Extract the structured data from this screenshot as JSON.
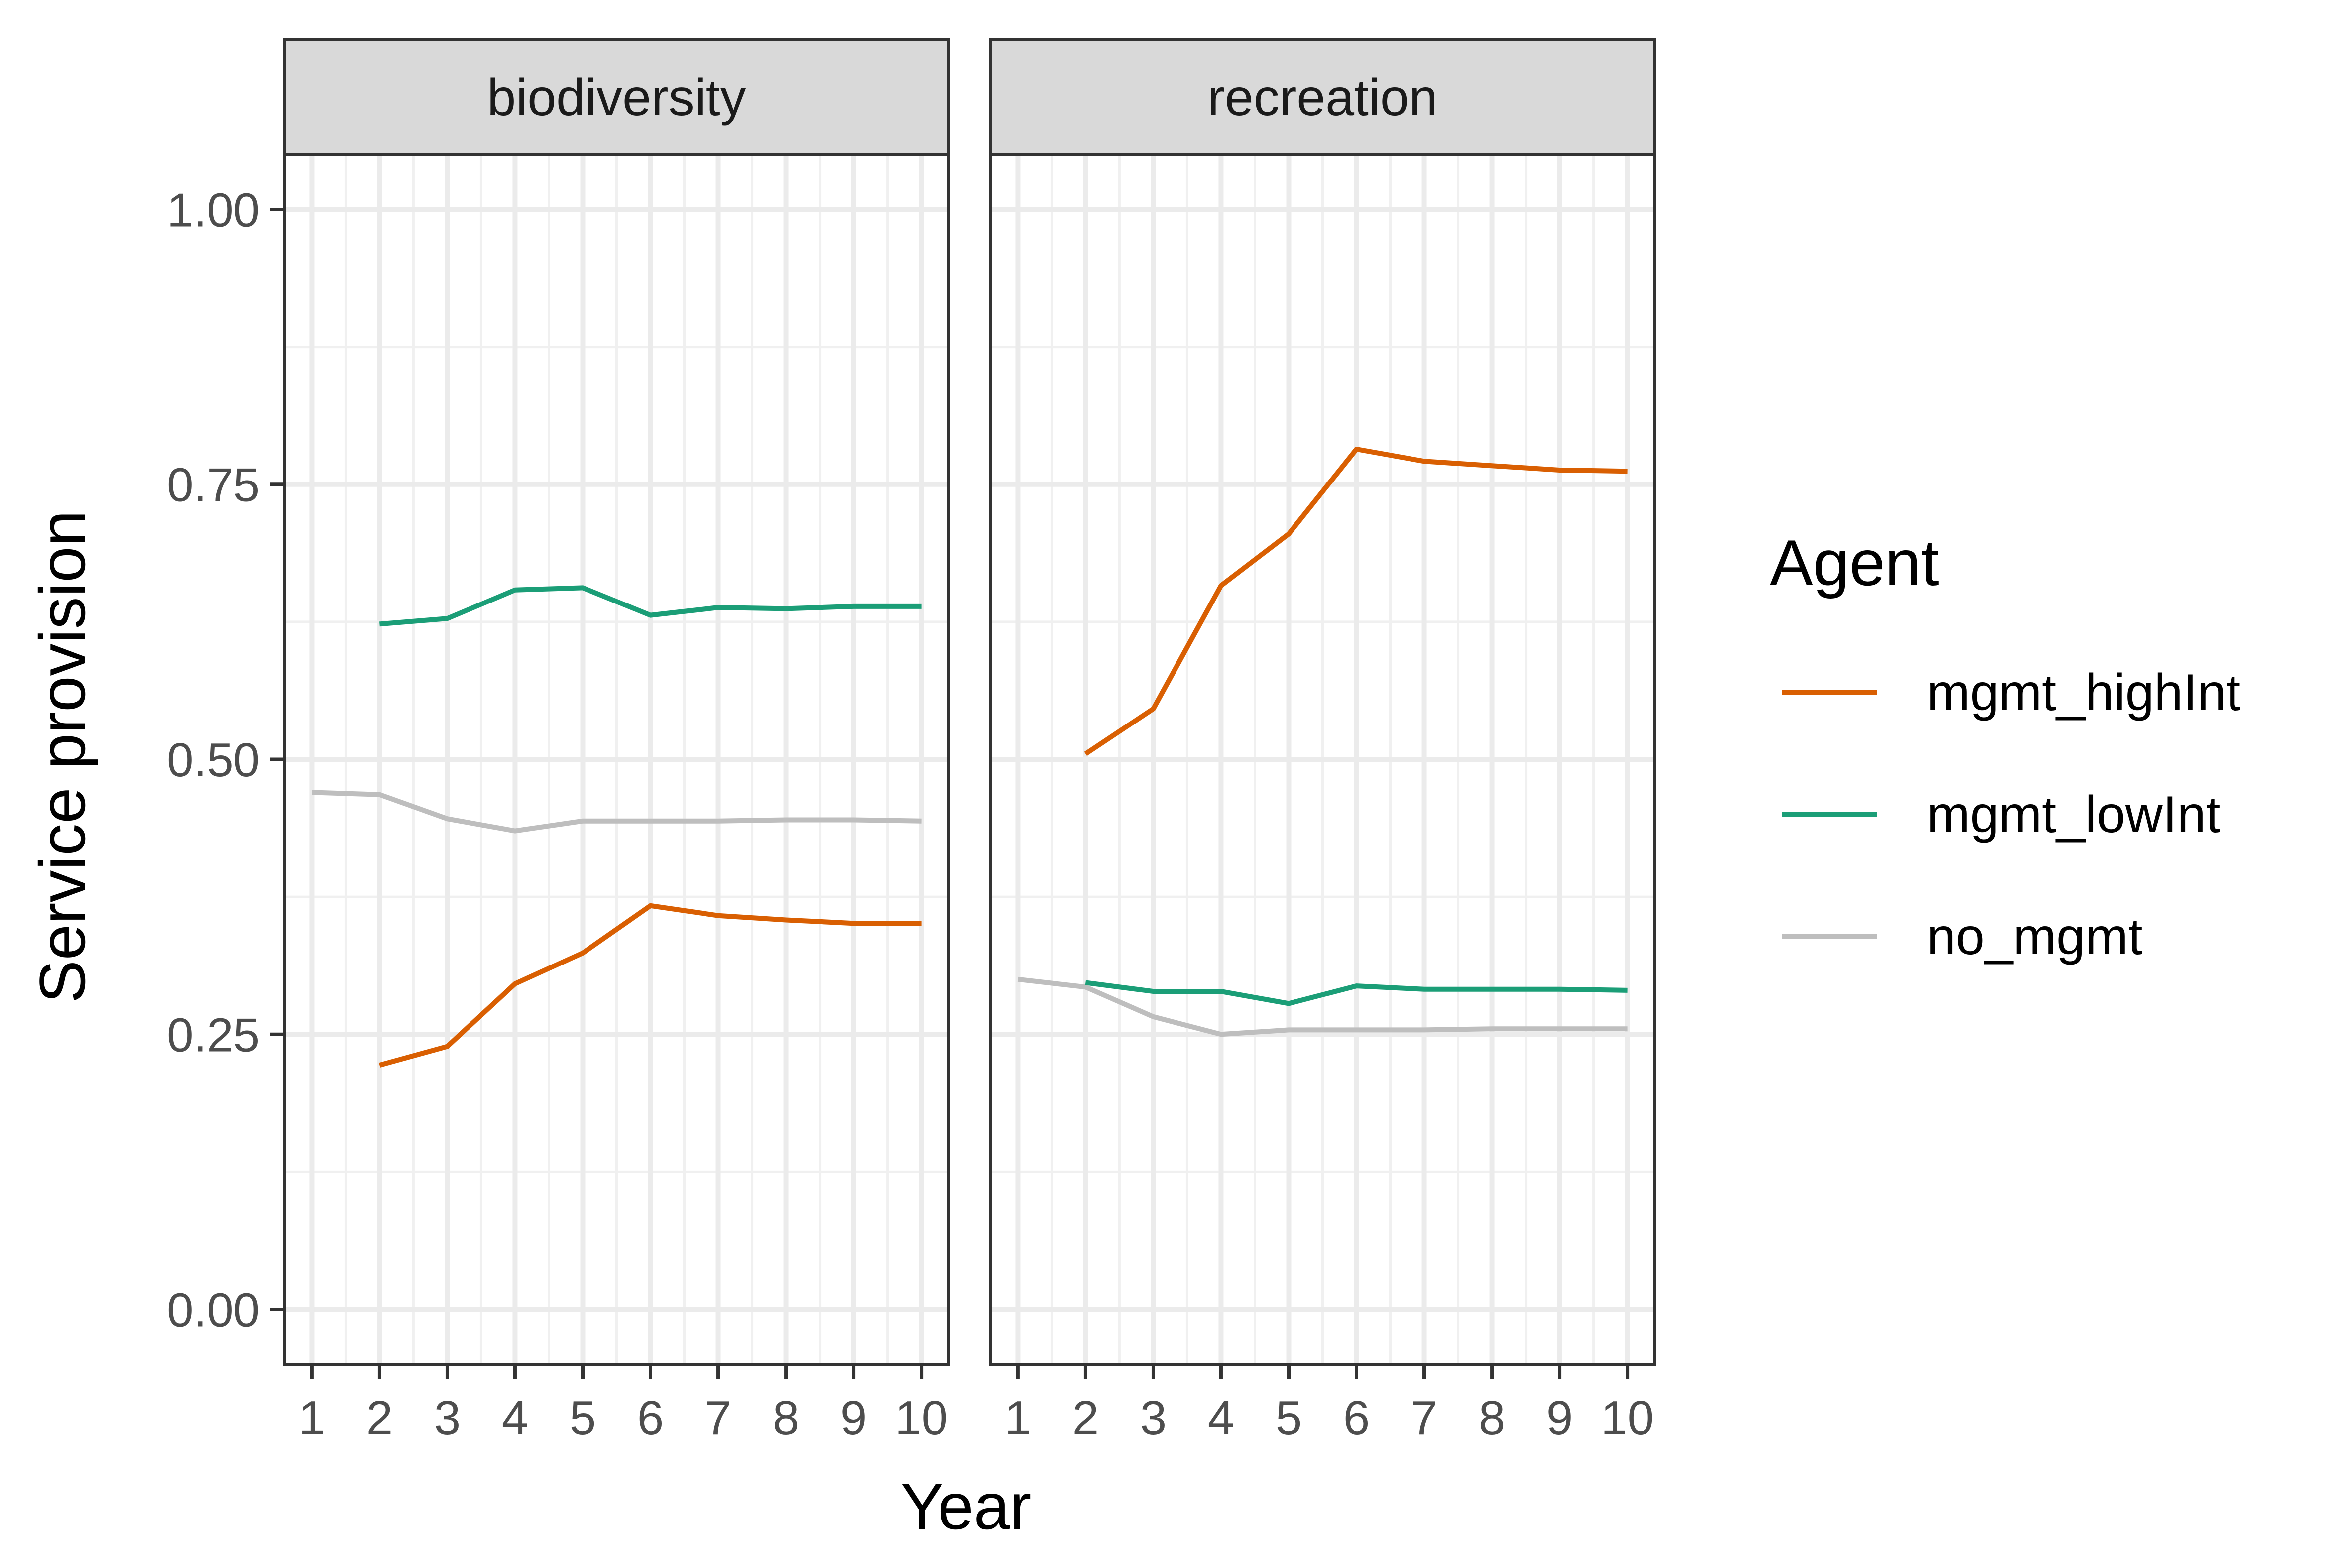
{
  "chart_data": {
    "type": "line",
    "facets": [
      "biodiversity",
      "recreation"
    ],
    "x": [
      1,
      2,
      3,
      4,
      5,
      6,
      7,
      8,
      9,
      10
    ],
    "x_tick_labels": [
      "1",
      "2",
      "3",
      "4",
      "5",
      "6",
      "7",
      "8",
      "9",
      "10"
    ],
    "y_ticks": [
      0.0,
      0.25,
      0.5,
      0.75,
      1.0
    ],
    "y_tick_labels": [
      "0.00",
      "0.25",
      "0.50",
      "0.75",
      "1.00"
    ],
    "xlabel": "Year",
    "ylabel": "Service provision",
    "xlim": [
      0.6,
      10.4
    ],
    "ylim": [
      -0.05,
      1.05
    ],
    "grid": true,
    "legend": {
      "title": "Agent",
      "position": "right",
      "entries": [
        "mgmt_highInt",
        "mgmt_lowInt",
        "no_mgmt"
      ]
    },
    "colors": {
      "mgmt_highInt": "#d95f02",
      "mgmt_lowInt": "#1b9e77",
      "no_mgmt": "#bebebe"
    },
    "panels": [
      {
        "facet": "biodiversity",
        "series": [
          {
            "name": "no_mgmt",
            "x": [
              1,
              2,
              3,
              4,
              5,
              6,
              7,
              8,
              9,
              10
            ],
            "values": [
              0.47,
              0.468,
              0.446,
              0.435,
              0.444,
              0.444,
              0.444,
              0.445,
              0.445,
              0.444
            ]
          },
          {
            "name": "mgmt_lowInt",
            "x": [
              2,
              3,
              4,
              5,
              6,
              7,
              8,
              9,
              10
            ],
            "values": [
              0.623,
              0.628,
              0.654,
              0.656,
              0.631,
              0.638,
              0.637,
              0.639,
              0.639
            ]
          },
          {
            "name": "mgmt_highInt",
            "x": [
              2,
              3,
              4,
              5,
              6,
              7,
              8,
              9,
              10
            ],
            "values": [
              0.222,
              0.239,
              0.296,
              0.324,
              0.367,
              0.358,
              0.354,
              0.351,
              0.351
            ]
          }
        ]
      },
      {
        "facet": "recreation",
        "series": [
          {
            "name": "no_mgmt",
            "x": [
              1,
              2,
              3,
              4,
              5,
              6,
              7,
              8,
              9,
              10
            ],
            "values": [
              0.3,
              0.293,
              0.266,
              0.25,
              0.254,
              0.254,
              0.254,
              0.255,
              0.255,
              0.255
            ]
          },
          {
            "name": "mgmt_lowInt",
            "x": [
              2,
              3,
              4,
              5,
              6,
              7,
              8,
              9,
              10
            ],
            "values": [
              0.297,
              0.289,
              0.289,
              0.278,
              0.294,
              0.291,
              0.291,
              0.291,
              0.29
            ]
          },
          {
            "name": "mgmt_highInt",
            "x": [
              2,
              3,
              4,
              5,
              6,
              7,
              8,
              9,
              10
            ],
            "values": [
              0.505,
              0.546,
              0.658,
              0.705,
              0.782,
              0.771,
              0.767,
              0.763,
              0.762
            ]
          }
        ]
      }
    ]
  }
}
